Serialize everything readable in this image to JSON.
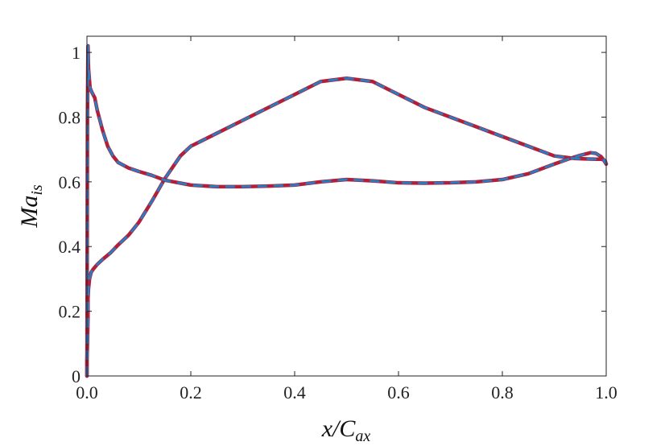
{
  "chart_data": {
    "type": "line",
    "xlabel": {
      "main": "x/C",
      "sub": "ax"
    },
    "ylabel": {
      "main": "Ma",
      "sub": "is"
    },
    "xlim": [
      0,
      1
    ],
    "ylim": [
      0,
      1.05
    ],
    "xticks": [
      0.0,
      0.2,
      0.4,
      0.6,
      0.8,
      1.0
    ],
    "xtick_labels": [
      "0.0",
      "0.2",
      "0.4",
      "0.6",
      "0.8",
      "1.0"
    ],
    "yticks": [
      0,
      0.2,
      0.4,
      0.6,
      0.8,
      1.0
    ],
    "ytick_labels": [
      "0",
      "0.2",
      "0.4",
      "0.6",
      "0.8",
      "1"
    ],
    "grid": false,
    "legend": "none",
    "colors": {
      "solid": "#B0203A",
      "dashed": "#2C7BBF"
    },
    "series": [
      {
        "style": "solid",
        "color": "#B0203A",
        "x": [
          0.0,
          0.0,
          0.001,
          0.002,
          0.002,
          0.003,
          0.005,
          0.008,
          0.012,
          0.02,
          0.03,
          0.045,
          0.06,
          0.08,
          0.1,
          0.125,
          0.15,
          0.18,
          0.2,
          0.25,
          0.3,
          0.35,
          0.4,
          0.45,
          0.5,
          0.55,
          0.6,
          0.65,
          0.7,
          0.75,
          0.8,
          0.85,
          0.9,
          0.94,
          0.96,
          0.98,
          0.99,
          0.995,
          0.998,
          1.0
        ],
        "y": [
          0.0,
          0.05,
          0.1,
          0.18,
          0.24,
          0.27,
          0.3,
          0.32,
          0.33,
          0.345,
          0.36,
          0.38,
          0.405,
          0.435,
          0.475,
          0.54,
          0.61,
          0.68,
          0.71,
          0.75,
          0.79,
          0.83,
          0.87,
          0.91,
          0.92,
          0.91,
          0.87,
          0.83,
          0.8,
          0.77,
          0.74,
          0.71,
          0.68,
          0.672,
          0.671,
          0.67,
          0.67,
          0.668,
          0.665,
          0.655
        ]
      },
      {
        "style": "solid",
        "color": "#B0203A",
        "x": [
          0.0,
          0.0005,
          0.001,
          0.002,
          0.003,
          0.006,
          0.01,
          0.015,
          0.02,
          0.03,
          0.04,
          0.05,
          0.06,
          0.08,
          0.1,
          0.125,
          0.15,
          0.2,
          0.25,
          0.3,
          0.35,
          0.4,
          0.45,
          0.5,
          0.55,
          0.6,
          0.65,
          0.7,
          0.75,
          0.8,
          0.85,
          0.9,
          0.93,
          0.95,
          0.97,
          0.98,
          0.99,
          0.995,
          0.998,
          1.0
        ],
        "y": [
          0.0,
          0.4,
          0.8,
          1.02,
          0.95,
          0.89,
          0.875,
          0.86,
          0.82,
          0.76,
          0.71,
          0.68,
          0.66,
          0.643,
          0.632,
          0.62,
          0.605,
          0.59,
          0.585,
          0.585,
          0.587,
          0.59,
          0.6,
          0.607,
          0.603,
          0.597,
          0.596,
          0.597,
          0.6,
          0.607,
          0.625,
          0.655,
          0.672,
          0.682,
          0.69,
          0.688,
          0.678,
          0.668,
          0.66,
          0.655
        ]
      },
      {
        "style": "dashed",
        "color": "#2C7BBF",
        "x": [
          0.0,
          0.0,
          0.001,
          0.002,
          0.002,
          0.003,
          0.005,
          0.008,
          0.012,
          0.02,
          0.03,
          0.045,
          0.06,
          0.08,
          0.1,
          0.125,
          0.15,
          0.18,
          0.2,
          0.25,
          0.3,
          0.35,
          0.4,
          0.45,
          0.5,
          0.55,
          0.6,
          0.65,
          0.7,
          0.75,
          0.8,
          0.85,
          0.9,
          0.94,
          0.96,
          0.98,
          0.99,
          0.995,
          0.998,
          1.0
        ],
        "y": [
          0.0,
          0.05,
          0.1,
          0.18,
          0.24,
          0.27,
          0.3,
          0.32,
          0.33,
          0.345,
          0.36,
          0.38,
          0.405,
          0.435,
          0.475,
          0.54,
          0.61,
          0.68,
          0.71,
          0.75,
          0.79,
          0.83,
          0.87,
          0.91,
          0.92,
          0.91,
          0.87,
          0.83,
          0.8,
          0.77,
          0.74,
          0.71,
          0.68,
          0.672,
          0.671,
          0.67,
          0.67,
          0.668,
          0.665,
          0.655
        ]
      },
      {
        "style": "dashed",
        "color": "#2C7BBF",
        "x": [
          0.0,
          0.0005,
          0.001,
          0.002,
          0.003,
          0.006,
          0.01,
          0.015,
          0.02,
          0.03,
          0.04,
          0.05,
          0.06,
          0.08,
          0.1,
          0.125,
          0.15,
          0.2,
          0.25,
          0.3,
          0.35,
          0.4,
          0.45,
          0.5,
          0.55,
          0.6,
          0.65,
          0.7,
          0.75,
          0.8,
          0.85,
          0.9,
          0.93,
          0.95,
          0.97,
          0.98,
          0.99,
          0.995,
          0.998,
          1.0
        ],
        "y": [
          0.0,
          0.4,
          0.8,
          1.02,
          0.95,
          0.89,
          0.875,
          0.86,
          0.82,
          0.76,
          0.71,
          0.68,
          0.66,
          0.643,
          0.632,
          0.62,
          0.605,
          0.59,
          0.585,
          0.585,
          0.587,
          0.59,
          0.6,
          0.607,
          0.603,
          0.597,
          0.596,
          0.597,
          0.6,
          0.607,
          0.625,
          0.655,
          0.672,
          0.682,
          0.69,
          0.688,
          0.678,
          0.668,
          0.66,
          0.655
        ]
      }
    ]
  }
}
